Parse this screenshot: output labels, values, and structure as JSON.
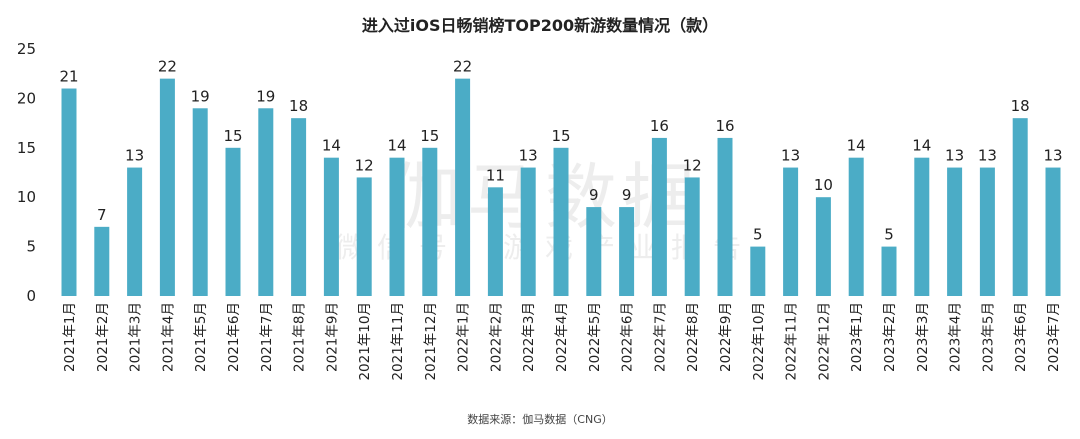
{
  "chart_data": {
    "type": "bar",
    "title": "进入过iOS日畅销榜TOP200新游数量情况（款）",
    "categories": [
      "2021年1月",
      "2021年2月",
      "2021年3月",
      "2021年4月",
      "2021年5月",
      "2021年6月",
      "2021年7月",
      "2021年8月",
      "2021年9月",
      "2021年10月",
      "2021年11月",
      "2021年12月",
      "2022年1月",
      "2022年2月",
      "2022年3月",
      "2022年4月",
      "2022年5月",
      "2022年6月",
      "2022年7月",
      "2022年8月",
      "2022年9月",
      "2022年10月",
      "2022年11月",
      "2022年12月",
      "2023年1月",
      "2023年2月",
      "2023年3月",
      "2023年4月",
      "2023年5月",
      "2023年6月",
      "2023年7月"
    ],
    "values": [
      21,
      7,
      13,
      22,
      19,
      15,
      19,
      18,
      14,
      12,
      14,
      15,
      22,
      11,
      13,
      15,
      9,
      9,
      16,
      12,
      16,
      5,
      13,
      10,
      14,
      5,
      14,
      13,
      13,
      18,
      13
    ],
    "ylim": [
      0,
      25
    ],
    "yticks": [
      0,
      5,
      10,
      15,
      20,
      25
    ],
    "xlabel": "",
    "ylabel": "",
    "grid": false,
    "bar_color": "#4bacc6",
    "source": "数据来源：伽马数据（CNG）",
    "watermark_main": "伽马数据",
    "watermark_sub": "微信号：游戏产业报告"
  }
}
